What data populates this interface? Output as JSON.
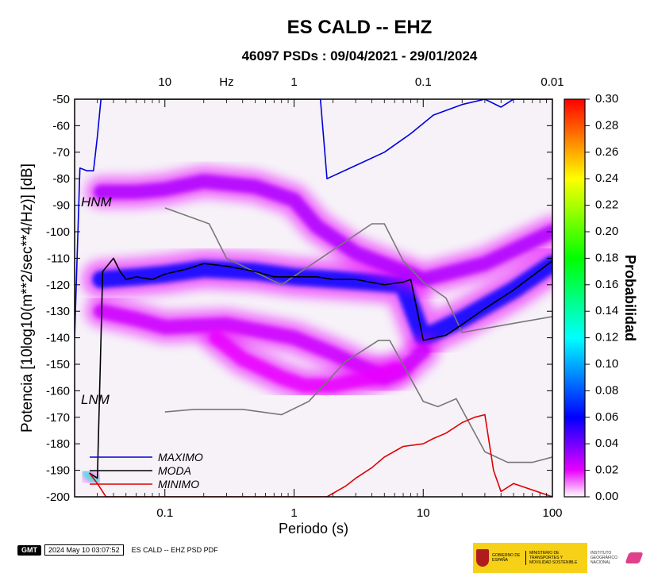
{
  "title": "ES CALD -- EHZ",
  "subtitle": "46097 PSDs : 09/04/2021 - 29/01/2024",
  "annotations": {
    "hnm": "HNM",
    "lnm": "LNM"
  },
  "legend": {
    "items": [
      {
        "label": "MAXIMO",
        "color": "#0000dd"
      },
      {
        "label": "MODA",
        "color": "#000000"
      },
      {
        "label": "MINIMO",
        "color": "#e00000"
      }
    ]
  },
  "colorbar": {
    "label": "Probabilidad",
    "min": 0.0,
    "max": 0.3,
    "ticks": [
      "0.30",
      "0.28",
      "0.26",
      "0.24",
      "0.22",
      "0.20",
      "0.18",
      "0.16",
      "0.14",
      "0.12",
      "0.10",
      "0.08",
      "0.06",
      "0.04",
      "0.02",
      "0.00"
    ],
    "colors": [
      "#ffffff",
      "#e800ff",
      "#0000ff",
      "#00ffff",
      "#00ff00",
      "#ffff00",
      "#ff0000"
    ]
  },
  "footer": {
    "logo_text": "GMT",
    "timestamp": "2024 May 10 03:07:52",
    "caption": "ES CALD -- EHZ PSD PDF"
  },
  "logos": {
    "gobierno": "GOBIERNO DE ESPAÑA",
    "ministerio": "MINISTERIO DE TRANSPORTES Y MOVILIDAD SOSTENIBLE",
    "instituto": "INSTITUTO GEOGRÁFICO NACIONAL"
  },
  "chart_data": {
    "type": "heatmap",
    "title": "ES CALD -- EHZ",
    "subtitle": "46097 PSDs : 09/04/2021 - 29/01/2024",
    "xlabel": "Periodo (s)",
    "ylabel": "Potencia [10log10(m**2/sec**4/Hz)] [dB]",
    "x_scale": "log",
    "xlim": [
      0.02,
      100
    ],
    "ylim": [
      -200,
      -50
    ],
    "x_ticks": [
      "0.1",
      "1",
      "10",
      "100"
    ],
    "y_ticks": [
      "-50",
      "-60",
      "-70",
      "-80",
      "-90",
      "-100",
      "-110",
      "-120",
      "-130",
      "-140",
      "-150",
      "-160",
      "-170",
      "-180",
      "-190",
      "-200"
    ],
    "top_axis": {
      "label": "Hz",
      "ticks": [
        "10",
        "1",
        "0.1",
        "0.01"
      ]
    },
    "grid": false,
    "series": [
      {
        "name": "MAXIMO",
        "color": "#0000dd",
        "x": [
          0.02,
          0.022,
          0.025,
          0.028,
          0.03,
          0.032,
          0.035,
          0.1,
          0.5,
          1,
          1.6,
          1.8,
          3,
          5,
          8,
          12,
          20,
          30,
          40,
          50,
          60,
          100
        ],
        "y": [
          -140,
          -76,
          -77,
          -77,
          -64,
          -50,
          -50,
          -50,
          -50,
          -50,
          -50,
          -80,
          -75,
          -70,
          -63,
          -56,
          -52,
          -50,
          -53,
          -50,
          -50,
          -50
        ]
      },
      {
        "name": "MODA",
        "color": "#000000",
        "x": [
          0.026,
          0.03,
          0.033,
          0.04,
          0.045,
          0.05,
          0.06,
          0.08,
          0.1,
          0.15,
          0.2,
          0.3,
          0.5,
          0.7,
          1,
          1.5,
          2,
          3,
          5,
          7,
          8,
          9,
          10,
          15,
          20,
          30,
          50,
          100
        ],
        "y": [
          -191,
          -193,
          -115,
          -110,
          -115,
          -118,
          -117,
          -118,
          -116,
          -114,
          -112,
          -113,
          -115,
          -117,
          -117,
          -117,
          -118,
          -118,
          -120,
          -119,
          -118,
          -130,
          -141,
          -139,
          -135,
          -129,
          -122,
          -111
        ]
      },
      {
        "name": "MINIMO",
        "color": "#e00000",
        "x": [
          0.026,
          0.03,
          0.035,
          0.05,
          0.1,
          0.3,
          1,
          1.8,
          2.5,
          3,
          4,
          5,
          7,
          10,
          12,
          15,
          20,
          25,
          30,
          35,
          40,
          50,
          100
        ],
        "y": [
          -191,
          -195,
          -200,
          -200,
          -200,
          -200,
          -200,
          -200,
          -196,
          -193,
          -189,
          -185,
          -181,
          -180,
          -178,
          -176,
          -172,
          -170,
          -169,
          -190,
          -198,
          -195,
          -200
        ]
      }
    ],
    "reference_curves": [
      {
        "name": "HNM",
        "color": "#777777",
        "x": [
          0.1,
          0.22,
          0.3,
          0.8,
          4,
          5,
          7,
          10,
          15,
          20,
          100
        ],
        "y": [
          -91,
          -97,
          -110,
          -120,
          -97,
          -97,
          -111,
          -119,
          -125,
          -138,
          -132
        ]
      },
      {
        "name": "LNM",
        "color": "#777777",
        "x": [
          0.1,
          0.17,
          0.4,
          0.8,
          1.3,
          2.5,
          4.5,
          5.5,
          10,
          13,
          18,
          30,
          45,
          70,
          100
        ],
        "y": [
          -168,
          -167,
          -167,
          -169,
          -164,
          -149,
          -141,
          -141,
          -164,
          -166,
          -163,
          -183,
          -187,
          -187,
          -185
        ]
      }
    ],
    "density_bands": [
      {
        "x": [
          0.032,
          0.06,
          0.1,
          0.2,
          0.5,
          1,
          2,
          4,
          7,
          10,
          20,
          50,
          100
        ],
        "y": [
          -118,
          -117,
          -116,
          -114,
          -115,
          -117,
          -118,
          -119,
          -120,
          -140,
          -133,
          -122,
          -112
        ],
        "probability": 0.06
      },
      {
        "x": [
          0.032,
          0.06,
          0.1,
          0.2,
          0.5,
          1,
          1.5,
          3,
          7,
          10,
          30,
          100
        ],
        "y": [
          -85,
          -85,
          -84,
          -81,
          -83,
          -88,
          -98,
          -108,
          -115,
          -118,
          -112,
          -100
        ],
        "probability": 0.03
      },
      {
        "x": [
          0.032,
          0.06,
          0.1,
          0.3,
          1,
          2,
          3,
          5,
          7,
          10
        ],
        "y": [
          -130,
          -133,
          -136,
          -135,
          -140,
          -146,
          -150,
          -155,
          -152,
          -145
        ],
        "probability": 0.025
      },
      {
        "x": [
          0.25,
          0.4,
          0.8,
          1.2,
          2,
          4,
          6
        ],
        "y": [
          -140,
          -148,
          -155,
          -158,
          -158,
          -155,
          -152
        ],
        "probability": 0.02
      },
      {
        "x": [
          0.024,
          0.027,
          0.03
        ],
        "y": [
          -191,
          -193,
          -194
        ],
        "probability": 0.13
      }
    ]
  }
}
